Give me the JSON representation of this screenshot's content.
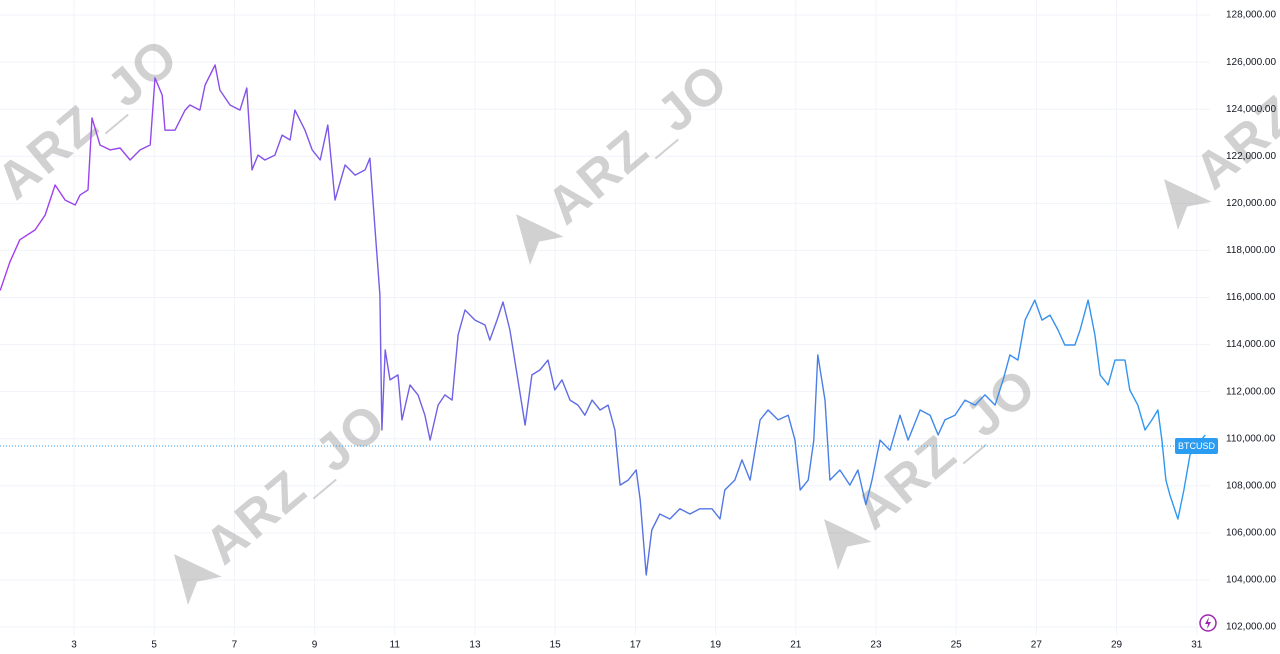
{
  "chart_data": {
    "type": "line",
    "symbol": "BTCUSD",
    "watermark": "ARZ_JO",
    "last_price": 109690,
    "grid": true,
    "xlim": [
      1.155,
      31.33
    ],
    "ylim": [
      101660,
      128640
    ],
    "xticks": [
      3,
      5,
      7,
      9,
      11,
      13,
      15,
      17,
      19,
      21,
      23,
      25,
      27,
      29,
      31
    ],
    "yticks": [
      {
        "value": 102000,
        "label": "102,000.00"
      },
      {
        "value": 104000,
        "label": "104,000.00"
      },
      {
        "value": 106000,
        "label": "106,000.00"
      },
      {
        "value": 108000,
        "label": "108,000.00"
      },
      {
        "value": 110000,
        "label": "110,000.00"
      },
      {
        "value": 112000,
        "label": "112,000.00"
      },
      {
        "value": 114000,
        "label": "114,000.00"
      },
      {
        "value": 116000,
        "label": "116,000.00"
      },
      {
        "value": 118000,
        "label": "118,000.00"
      },
      {
        "value": 120000,
        "label": "120,000.00"
      },
      {
        "value": 122000,
        "label": "122,000.00"
      },
      {
        "value": 124000,
        "label": "124,000.00"
      },
      {
        "value": 126000,
        "label": "126,000.00"
      },
      {
        "value": 128000,
        "label": "128,000.00"
      }
    ],
    "series": [
      {
        "color": [
          "#a63bf0",
          "#5b6fe2",
          "#2a9cf2"
        ],
        "x": [
          1.16,
          1.4,
          1.65,
          2.03,
          2.28,
          2.53,
          2.78,
          3.03,
          3.15,
          3.35,
          3.45,
          3.65,
          3.9,
          4.15,
          4.4,
          4.65,
          4.9,
          5.02,
          5.2,
          5.27,
          5.52,
          5.77,
          5.89,
          6.14,
          6.27,
          6.52,
          6.64,
          6.89,
          7.14,
          7.31,
          7.44,
          7.59,
          7.76,
          8.01,
          8.19,
          8.39,
          8.51,
          8.76,
          8.94,
          9.14,
          9.33,
          9.51,
          9.76,
          10.01,
          10.26,
          10.38,
          10.51,
          10.63,
          10.68,
          10.76,
          10.88,
          11.08,
          11.18,
          11.38,
          11.58,
          11.75,
          11.88,
          12.08,
          12.25,
          12.43,
          12.58,
          12.75,
          13.0,
          13.25,
          13.37,
          13.55,
          13.7,
          13.87,
          14.07,
          14.25,
          14.42,
          14.62,
          14.82,
          14.99,
          15.17,
          15.37,
          15.57,
          15.74,
          15.92,
          16.12,
          16.32,
          16.49,
          16.62,
          16.82,
          17.02,
          17.12,
          17.27,
          17.41,
          17.61,
          17.86,
          18.11,
          18.36,
          18.61,
          18.91,
          19.11,
          19.23,
          19.48,
          19.66,
          19.86,
          20.11,
          20.31,
          20.56,
          20.81,
          20.98,
          21.11,
          21.31,
          21.45,
          21.55,
          21.73,
          21.85,
          22.1,
          22.35,
          22.55,
          22.75,
          22.9,
          23.1,
          23.35,
          23.6,
          23.8,
          24.1,
          24.35,
          24.55,
          24.72,
          24.97,
          25.22,
          25.47,
          25.72,
          25.97,
          26.17,
          26.34,
          26.54,
          26.72,
          26.96,
          27.14,
          27.34,
          27.54,
          27.71,
          27.96,
          28.09,
          28.29,
          28.46,
          28.59,
          28.79,
          28.96,
          29.21,
          29.33,
          29.53,
          29.71,
          29.88,
          30.03,
          30.13,
          30.23,
          30.33,
          30.53,
          30.68,
          30.83,
          31.01,
          31.21
        ],
        "values": [
          116300,
          117500,
          118450,
          118870,
          119500,
          120780,
          120140,
          119930,
          120350,
          120570,
          123630,
          122480,
          122270,
          122350,
          121840,
          122270,
          122480,
          125330,
          124600,
          123110,
          123110,
          123960,
          124180,
          123960,
          125030,
          125880,
          124810,
          124180,
          123960,
          124900,
          121420,
          122050,
          121840,
          122050,
          122900,
          122690,
          123960,
          123110,
          122270,
          121840,
          123330,
          120140,
          121630,
          121200,
          121420,
          121920,
          118870,
          116110,
          110370,
          113770,
          112500,
          112710,
          110800,
          112280,
          111860,
          111000,
          109940,
          111430,
          111860,
          111640,
          114410,
          115470,
          115040,
          114830,
          114190,
          115040,
          115810,
          114620,
          112500,
          110580,
          112710,
          112920,
          113340,
          112070,
          112500,
          111640,
          111430,
          111000,
          111640,
          111220,
          111430,
          110370,
          108030,
          108240,
          108670,
          107400,
          104210,
          106120,
          106800,
          106590,
          107020,
          106800,
          107020,
          107020,
          106590,
          107820,
          108240,
          109100,
          108240,
          110800,
          111220,
          110800,
          111000,
          109940,
          107820,
          108240,
          109940,
          113560,
          111640,
          108240,
          108670,
          108030,
          108670,
          107200,
          108240,
          109940,
          109510,
          111000,
          109940,
          111220,
          111000,
          110160,
          110800,
          111000,
          111640,
          111430,
          111860,
          111430,
          112500,
          113560,
          113340,
          115040,
          115890,
          115040,
          115250,
          114620,
          113980,
          113980,
          114620,
          115890,
          114410,
          112710,
          112280,
          113340,
          113340,
          112070,
          111430,
          110370,
          110800,
          111220,
          109940,
          108240,
          107610,
          106590,
          107820,
          109310,
          109730,
          110160
        ]
      }
    ]
  }
}
